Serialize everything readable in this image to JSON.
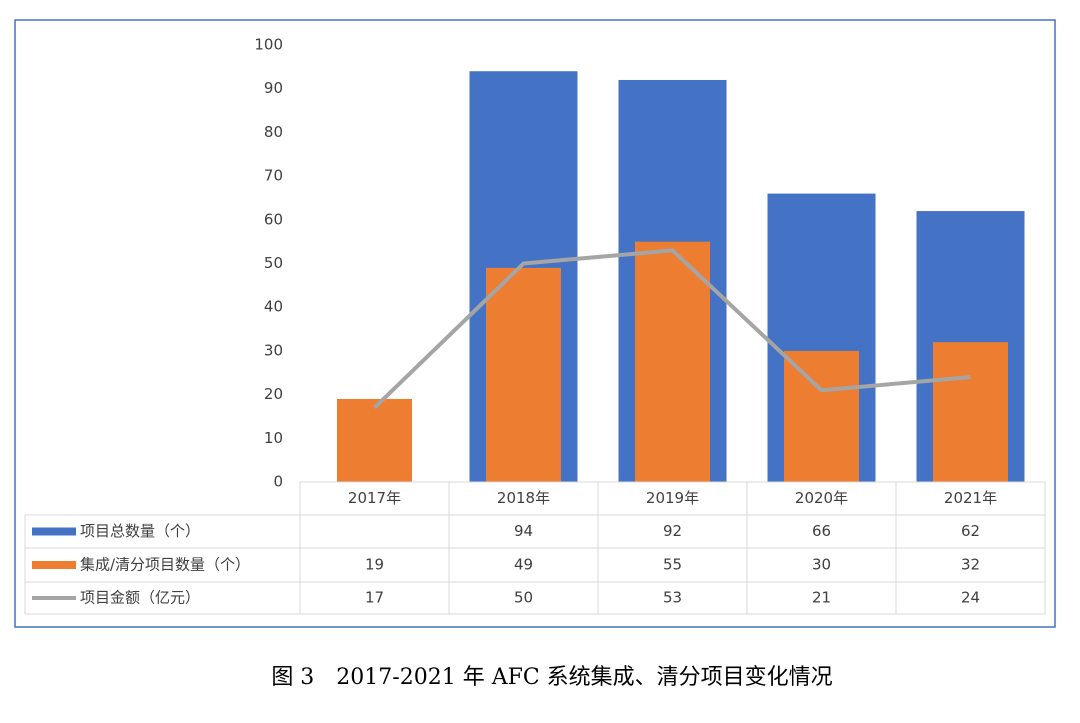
{
  "chart_data": {
    "type": "bar",
    "caption": "图 3　2017-2021 年 AFC 系统集成、清分项目变化情况",
    "categories": [
      "2017年",
      "2018年",
      "2019年",
      "2020年",
      "2021年"
    ],
    "series": [
      {
        "name": "项目总数量（个）",
        "type": "bar",
        "color": "#4472c4",
        "values": [
          null,
          94,
          92,
          66,
          62
        ]
      },
      {
        "name": "集成/清分项目数量（个）",
        "type": "bar",
        "color": "#ed7d31",
        "values": [
          19,
          49,
          55,
          30,
          32
        ]
      },
      {
        "name": "项目金额（亿元）",
        "type": "line",
        "color": "#a5a5a5",
        "values": [
          17,
          50,
          53,
          21,
          24
        ]
      }
    ],
    "ylim": [
      0,
      100
    ],
    "yticks": [
      0,
      10,
      20,
      30,
      40,
      50,
      60,
      70,
      80,
      90,
      100
    ],
    "grid": false,
    "data_table": true
  }
}
